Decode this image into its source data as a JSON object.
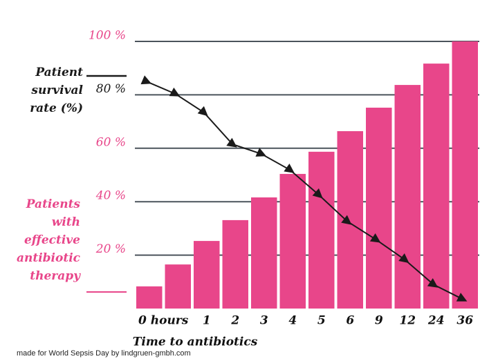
{
  "chart_data": {
    "type": "bar_line",
    "x_label": "Time to antibiotics",
    "footer": "made for World Sepsis Day by lindgruen-gmbh.com",
    "categories": [
      "0 hours",
      null,
      "1",
      "2",
      "3",
      "4",
      "5",
      "6",
      "9",
      "12",
      "24",
      "36"
    ],
    "series": [
      {
        "name": "Patients with effective antibiotic therapy",
        "type": "bar",
        "color": "#e8468a",
        "values": [
          8.3,
          16.5,
          25.3,
          33.1,
          41.6,
          50.4,
          58.7,
          66.4,
          75.2,
          83.7,
          91.7,
          100
        ]
      },
      {
        "name": "Patient survival rate (%)",
        "type": "line",
        "color": "#1a1a1a",
        "values": [
          85,
          80.4,
          73.4,
          61.5,
          57.9,
          51.9,
          42.6,
          32.6,
          25.8,
          18.3,
          9.0,
          3.6
        ]
      }
    ],
    "ylim": [
      0,
      100
    ],
    "yticks": [
      {
        "value": 20,
        "label": "20 %",
        "color": "#e8468a"
      },
      {
        "value": 40,
        "label": "40 %",
        "color": "#e8468a"
      },
      {
        "value": 60,
        "label": "60 %",
        "color": "#e8468a"
      },
      {
        "value": 80,
        "label": "80 %",
        "color": "#1a1a1a"
      },
      {
        "value": 100,
        "label": "100 %",
        "color": "#e8468a"
      }
    ],
    "grid": true
  }
}
